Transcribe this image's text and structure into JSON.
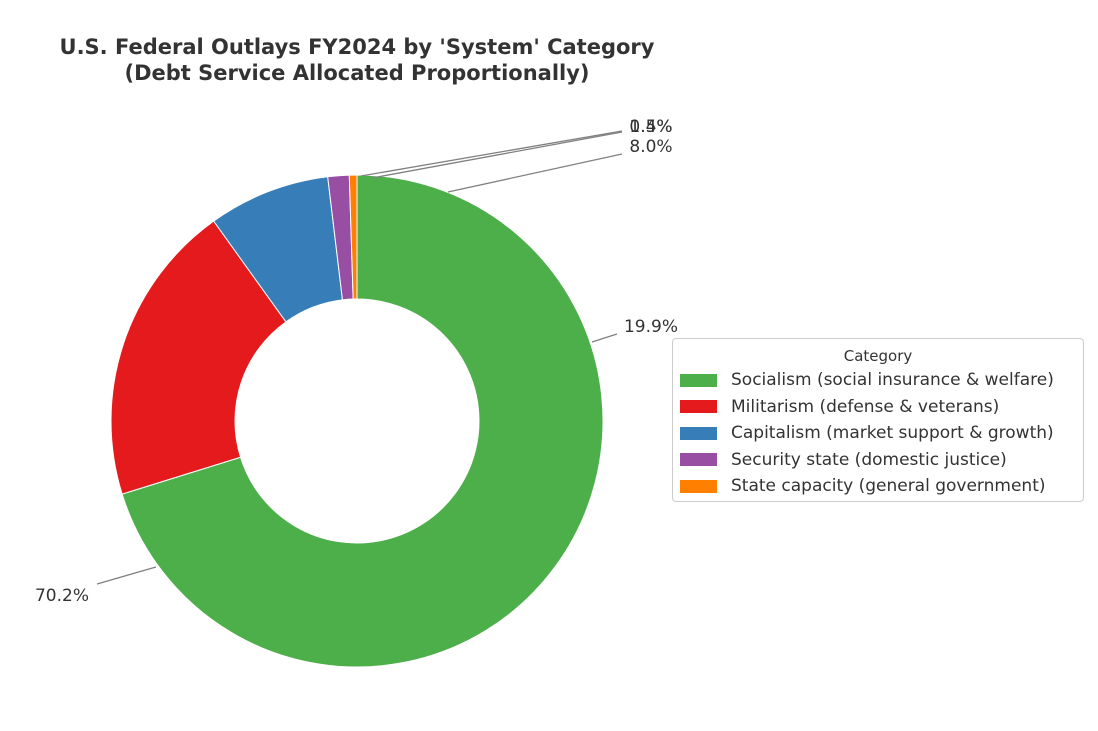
{
  "chart_data": {
    "type": "pie",
    "donut": true,
    "title": "U.S. Federal Outlays FY2024 by 'System' Category",
    "subtitle": "(Debt Service Allocated Proportionally)",
    "legend_title": "Category",
    "legend_position": "right",
    "slices": [
      {
        "label": "Socialism (social insurance & welfare)",
        "value": 70.2,
        "value_label": "70.2%",
        "color": "#4daf4a"
      },
      {
        "label": "Militarism (defense & veterans)",
        "value": 19.9,
        "value_label": "19.9%",
        "color": "#e41a1c"
      },
      {
        "label": "Capitalism (market support & growth)",
        "value": 8.0,
        "value_label": "8.0%",
        "color": "#377eb8"
      },
      {
        "label": "Security state (domestic justice)",
        "value": 1.4,
        "value_label": "1.4%",
        "color": "#984ea3"
      },
      {
        "label": "State capacity (general government)",
        "value": 0.5,
        "value_label": "0.5%",
        "color": "#ff7f00"
      }
    ]
  }
}
